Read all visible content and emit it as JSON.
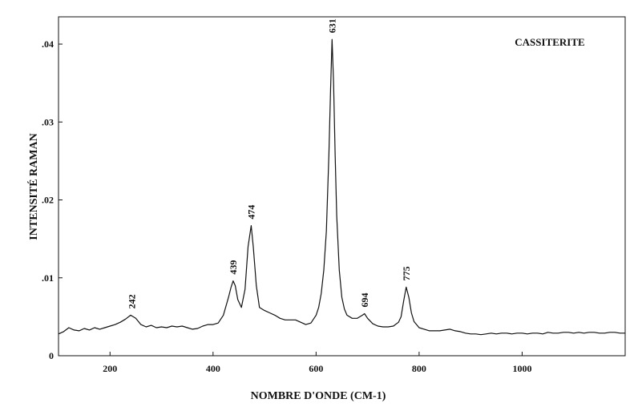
{
  "chart_data": {
    "type": "line",
    "title": "CASSITERITE",
    "xlabel": "NOMBRE D'ONDE (CM-1)",
    "ylabel": "INTENSITÉ RAMAN",
    "xlim": [
      100,
      1200
    ],
    "ylim": [
      0,
      0.0435
    ],
    "x_ticks": [
      200,
      400,
      600,
      800,
      1000
    ],
    "x_tick_labels": [
      "200",
      "400",
      "600",
      "800",
      "1000"
    ],
    "y_ticks": [
      0,
      0.01,
      0.02,
      0.03,
      0.04
    ],
    "y_tick_labels": [
      "0",
      ".01",
      ".02",
      ".03",
      ".04"
    ],
    "grid": false,
    "legend": "none",
    "peaks": [
      {
        "x": 242,
        "label": "242",
        "y": 0.0052
      },
      {
        "x": 439,
        "label": "439",
        "y": 0.0096
      },
      {
        "x": 474,
        "label": "474",
        "y": 0.0167
      },
      {
        "x": 631,
        "label": "631",
        "y": 0.0406
      },
      {
        "x": 694,
        "label": "694",
        "y": 0.0054
      },
      {
        "x": 775,
        "label": "775",
        "y": 0.0088
      }
    ],
    "series": [
      {
        "x": [
          100,
          110,
          120,
          130,
          140,
          150,
          160,
          170,
          180,
          190,
          200,
          210,
          220,
          230,
          240,
          250,
          260,
          270,
          280,
          290,
          300,
          310,
          320,
          330,
          340,
          350,
          360,
          370,
          380,
          390,
          400,
          410,
          420,
          430,
          435,
          439,
          443,
          448,
          455,
          462,
          468,
          474,
          478,
          484,
          490,
          500,
          510,
          520,
          530,
          540,
          550,
          560,
          570,
          580,
          590,
          600,
          605,
          610,
          615,
          620,
          625,
          628,
          631,
          634,
          637,
          640,
          645,
          650,
          655,
          660,
          670,
          680,
          690,
          694,
          700,
          710,
          720,
          730,
          740,
          750,
          760,
          765,
          770,
          775,
          780,
          785,
          790,
          800,
          810,
          820,
          830,
          840,
          850,
          860,
          870,
          880,
          890,
          900,
          910,
          920,
          930,
          940,
          950,
          960,
          970,
          980,
          990,
          1000,
          1010,
          1020,
          1030,
          1040,
          1050,
          1060,
          1070,
          1080,
          1090,
          1100,
          1110,
          1120,
          1130,
          1140,
          1150,
          1160,
          1170,
          1180,
          1190,
          1200
        ],
        "y": [
          0.0028,
          0.0031,
          0.0036,
          0.0033,
          0.0032,
          0.0035,
          0.0033,
          0.0036,
          0.0034,
          0.0036,
          0.0038,
          0.004,
          0.0043,
          0.0047,
          0.0052,
          0.0048,
          0.004,
          0.0037,
          0.0039,
          0.0036,
          0.0037,
          0.0036,
          0.0038,
          0.0037,
          0.0038,
          0.0036,
          0.0034,
          0.0035,
          0.0038,
          0.004,
          0.004,
          0.0042,
          0.0052,
          0.0075,
          0.0088,
          0.0096,
          0.009,
          0.0072,
          0.0062,
          0.0085,
          0.014,
          0.0167,
          0.014,
          0.009,
          0.0062,
          0.0058,
          0.0055,
          0.0052,
          0.0048,
          0.0046,
          0.0046,
          0.0046,
          0.0043,
          0.004,
          0.0042,
          0.0052,
          0.0062,
          0.008,
          0.011,
          0.016,
          0.026,
          0.034,
          0.0406,
          0.035,
          0.026,
          0.018,
          0.011,
          0.0075,
          0.006,
          0.0052,
          0.0048,
          0.0048,
          0.0052,
          0.0054,
          0.0048,
          0.0041,
          0.0038,
          0.0037,
          0.0037,
          0.0038,
          0.0043,
          0.005,
          0.007,
          0.0088,
          0.0075,
          0.0055,
          0.0044,
          0.0036,
          0.0034,
          0.0032,
          0.0032,
          0.0032,
          0.0033,
          0.0034,
          0.0032,
          0.0031,
          0.0029,
          0.0028,
          0.0028,
          0.0027,
          0.0028,
          0.0029,
          0.0028,
          0.0029,
          0.0029,
          0.0028,
          0.0029,
          0.0029,
          0.0028,
          0.0029,
          0.0029,
          0.0028,
          0.003,
          0.0029,
          0.0029,
          0.003,
          0.003,
          0.0029,
          0.003,
          0.0029,
          0.003,
          0.003,
          0.0029,
          0.0029,
          0.003,
          0.003,
          0.0029,
          0.0029
        ]
      }
    ]
  }
}
